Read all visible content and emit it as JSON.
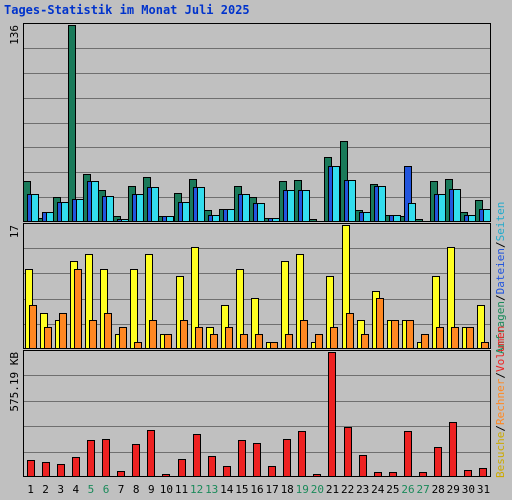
{
  "title": "Tages-Statistik im Monat Juli 2025",
  "colors": {
    "title": "#0033cc",
    "anfragen": "#1a7a5a",
    "dateien": "#2255dd",
    "seiten": "#33ddee",
    "besuche": "#ffff22",
    "rechner": "#ff8822",
    "volumen": "#ee2222",
    "weekend_day": "#1a8a5a",
    "weekday": "#000000",
    "grid": "#6f6f6f",
    "background": "#c0c0c0"
  },
  "legend": {
    "right_top": [
      {
        "text": "Anfragen",
        "color": "#1a8a5a"
      },
      {
        "text": "Dateien",
        "color": "#2255dd"
      },
      {
        "text": "Seiten",
        "color": "#22aacc"
      }
    ],
    "right_bottom": [
      {
        "text": "Besuche",
        "color": "#ccaa00"
      },
      {
        "text": "Rechner",
        "color": "#ff8822"
      },
      {
        "text": "Volumen",
        "color": "#ee2222"
      }
    ],
    "separator": "/"
  },
  "chart_data": [
    {
      "type": "bar",
      "panel": "top",
      "ymax_label": "136",
      "ylim": [
        0,
        136
      ],
      "x": [
        1,
        2,
        3,
        4,
        5,
        6,
        7,
        8,
        9,
        10,
        11,
        12,
        13,
        14,
        15,
        16,
        17,
        18,
        19,
        20,
        21,
        22,
        23,
        24,
        25,
        26,
        27,
        28,
        29,
        30,
        31
      ],
      "series": [
        {
          "name": "Anfragen",
          "values": [
            28,
            3,
            17,
            136,
            33,
            22,
            4,
            25,
            31,
            4,
            20,
            30,
            8,
            9,
            25,
            17,
            3,
            28,
            29,
            2,
            45,
            56,
            8,
            26,
            5,
            4,
            2,
            28,
            30,
            7,
            15
          ],
          "color": "#1a7a5a"
        },
        {
          "name": "Dateien",
          "values": [
            19,
            7,
            14,
            16,
            28,
            18,
            2,
            19,
            24,
            4,
            14,
            24,
            5,
            9,
            19,
            13,
            3,
            22,
            22,
            1,
            39,
            29,
            7,
            25,
            5,
            39,
            1,
            19,
            23,
            5,
            9
          ],
          "color": "#2255dd"
        },
        {
          "name": "Seiten",
          "values": [
            19,
            7,
            14,
            16,
            28,
            18,
            2,
            19,
            24,
            4,
            14,
            24,
            5,
            9,
            19,
            13,
            3,
            22,
            22,
            1,
            39,
            29,
            7,
            25,
            5,
            13,
            1,
            19,
            23,
            5,
            9
          ],
          "color": "#33ddee"
        }
      ]
    },
    {
      "type": "bar",
      "panel": "middle",
      "ymax_label": "17",
      "ylim": [
        0,
        17
      ],
      "x": [
        1,
        2,
        3,
        4,
        5,
        6,
        7,
        8,
        9,
        10,
        11,
        12,
        13,
        14,
        15,
        16,
        17,
        18,
        19,
        20,
        21,
        22,
        23,
        24,
        25,
        26,
        27,
        28,
        29,
        30,
        31
      ],
      "series": [
        {
          "name": "Besuche",
          "values": [
            11,
            5,
            4,
            12,
            13,
            11,
            2,
            11,
            13,
            2,
            10,
            14,
            3,
            6,
            11,
            7,
            1,
            12,
            13,
            1,
            10,
            17,
            4,
            8,
            4,
            4,
            1,
            10,
            14,
            3,
            6
          ],
          "color": "#ffff22"
        },
        {
          "name": "Rechner",
          "values": [
            6,
            3,
            5,
            11,
            4,
            5,
            3,
            1,
            4,
            2,
            4,
            3,
            2,
            3,
            2,
            2,
            1,
            2,
            4,
            2,
            3,
            5,
            2,
            7,
            4,
            4,
            2,
            3,
            3,
            3,
            1
          ],
          "color": "#ff8822"
        }
      ]
    },
    {
      "type": "bar",
      "panel": "bottom",
      "ymax_label": "575.19 KB",
      "ylim": [
        0,
        575.19
      ],
      "x": [
        1,
        2,
        3,
        4,
        5,
        6,
        7,
        8,
        9,
        10,
        11,
        12,
        13,
        14,
        15,
        16,
        17,
        18,
        19,
        20,
        21,
        22,
        23,
        24,
        25,
        26,
        27,
        28,
        29,
        30,
        31
      ],
      "series": [
        {
          "name": "Volumen",
          "values": [
            78,
            70,
            58,
            92,
            170,
            175,
            28,
            152,
            215,
            15,
            85,
            196,
            95,
            52,
            170,
            155,
            50,
            175,
            212,
            12,
            575,
            228,
            100,
            25,
            22,
            212,
            22,
            140,
            255,
            32,
            42
          ],
          "color": "#ee2222"
        }
      ]
    }
  ],
  "x_labels": [
    {
      "text": "1",
      "weekend": false
    },
    {
      "text": "2",
      "weekend": false
    },
    {
      "text": "3",
      "weekend": false
    },
    {
      "text": "4",
      "weekend": false
    },
    {
      "text": "5",
      "weekend": true
    },
    {
      "text": "6",
      "weekend": true
    },
    {
      "text": "7",
      "weekend": false
    },
    {
      "text": "8",
      "weekend": false
    },
    {
      "text": "9",
      "weekend": false
    },
    {
      "text": "10",
      "weekend": false
    },
    {
      "text": "11",
      "weekend": false
    },
    {
      "text": "12",
      "weekend": true
    },
    {
      "text": "13",
      "weekend": true
    },
    {
      "text": "14",
      "weekend": false
    },
    {
      "text": "15",
      "weekend": false
    },
    {
      "text": "16",
      "weekend": false
    },
    {
      "text": "17",
      "weekend": false
    },
    {
      "text": "18",
      "weekend": false
    },
    {
      "text": "19",
      "weekend": true
    },
    {
      "text": "20",
      "weekend": true
    },
    {
      "text": "21",
      "weekend": false
    },
    {
      "text": "22",
      "weekend": false
    },
    {
      "text": "23",
      "weekend": false
    },
    {
      "text": "24",
      "weekend": false
    },
    {
      "text": "25",
      "weekend": false
    },
    {
      "text": "26",
      "weekend": true
    },
    {
      "text": "27",
      "weekend": true
    },
    {
      "text": "28",
      "weekend": false
    },
    {
      "text": "29",
      "weekend": false
    },
    {
      "text": "30",
      "weekend": false
    },
    {
      "text": "31",
      "weekend": false
    }
  ]
}
